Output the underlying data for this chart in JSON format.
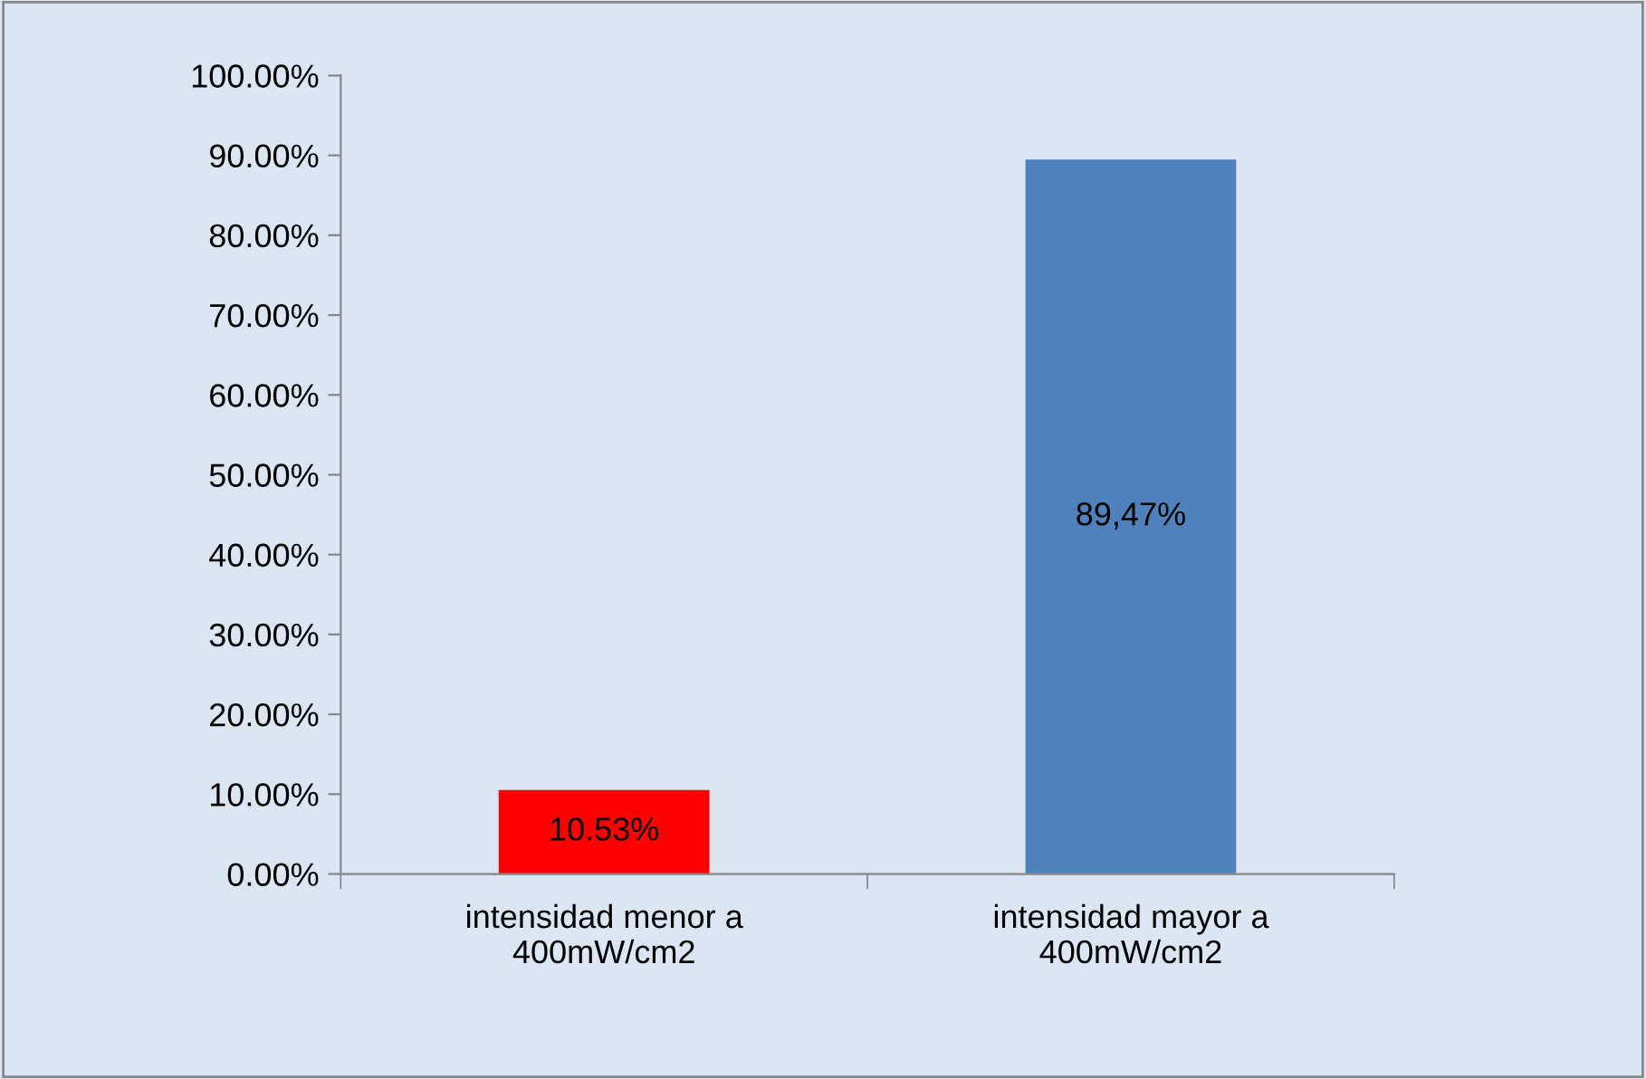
{
  "chart_data": {
    "type": "bar",
    "categories": [
      "intensidad menor a\n400mW/cm2",
      "intensidad mayor a\n400mW/cm2"
    ],
    "values": [
      10.53,
      89.47
    ],
    "colors": [
      "#ff0000",
      "#4f81bd"
    ],
    "value_labels": [
      "10.53%",
      "89,47%"
    ],
    "ylim": [
      0,
      100
    ],
    "yticks": [
      {
        "value": 0,
        "label": "0.00%"
      },
      {
        "value": 10,
        "label": "10.00%"
      },
      {
        "value": 20,
        "label": "20.00%"
      },
      {
        "value": 30,
        "label": "30.00%"
      },
      {
        "value": 40,
        "label": "40.00%"
      },
      {
        "value": 50,
        "label": "50.00%"
      },
      {
        "value": 60,
        "label": "60.00%"
      },
      {
        "value": 70,
        "label": "70.00%"
      },
      {
        "value": 80,
        "label": "80.00%"
      },
      {
        "value": 90,
        "label": "90.00%"
      },
      {
        "value": 100,
        "label": "100.00%"
      }
    ],
    "grid": false,
    "legend": false
  }
}
